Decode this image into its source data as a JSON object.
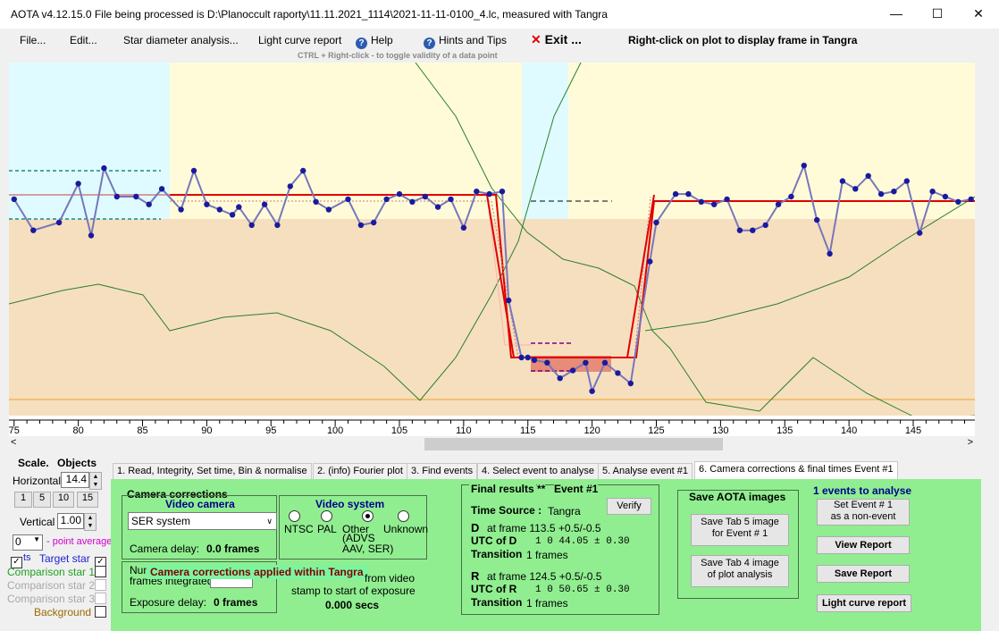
{
  "window": {
    "title": "AOTA v4.12.15.0    File being processed is D:\\Planoccult raporty\\11.11.2021_1114\\2021-11-11-0100_4.lc, measured with Tangra",
    "minimize": "—",
    "maximize": "☐",
    "close": "✕"
  },
  "menu": {
    "file": "File...",
    "edit": "Edit...",
    "star_diameter": "Star diameter analysis...",
    "light_curve_report": "Light curve report",
    "help": "Help",
    "hints": "Hints and Tips",
    "exit": "Exit ...",
    "rightclick_note": "Right-click on plot to display frame in Tangra"
  },
  "hint_line": "CTRL + Right-click  -  to toggle validity of a data point",
  "colors": {
    "cyan_band": "#e0fbff",
    "yellow_band": "#fffbd9",
    "tan_band": "#f6dfbf",
    "series": "#7777bb",
    "points": "#1a1a9e",
    "model": "#e00000",
    "green_curve": "#2a7f2a",
    "panel_green": "#90ee90"
  },
  "chart_data": {
    "type": "line",
    "xlabel": "",
    "ylabel": "",
    "xlim": [
      74.6,
      149.8
    ],
    "ticks": [
      75,
      80,
      85,
      90,
      95,
      100,
      105,
      110,
      115,
      120,
      125,
      130,
      135,
      140,
      145
    ],
    "series": [
      {
        "x": [
          75,
          76.5,
          78.5,
          80,
          81,
          82,
          83,
          84.5,
          85.5,
          86.5,
          88,
          89,
          90,
          91,
          92,
          92.5,
          93.5,
          94.5,
          95.5,
          96.5,
          97.5,
          98.5,
          99.5,
          101,
          102,
          103,
          104,
          105,
          106,
          107,
          108,
          109,
          110,
          111,
          112,
          113,
          113.5,
          114.5,
          115,
          115.5,
          116.5,
          117.5,
          118.5,
          119.5,
          120,
          121,
          122,
          123,
          124.5,
          125,
          126.5,
          127.5,
          128.5,
          129.5,
          130.5,
          131.5,
          132.5,
          133.5,
          134.5,
          135.5,
          136.5,
          137.5,
          138.5,
          139.5,
          140.5,
          141.5,
          142.5,
          143.5,
          144.5,
          145.5,
          146.5,
          147.5,
          148.5,
          149.5
        ],
        "y": [
          0.99,
          0.87,
          0.9,
          1.05,
          0.85,
          1.11,
          1.0,
          1.0,
          0.97,
          1.03,
          0.95,
          1.1,
          0.97,
          0.95,
          0.93,
          0.96,
          0.89,
          0.97,
          0.89,
          1.04,
          1.1,
          0.98,
          0.95,
          0.99,
          0.89,
          0.9,
          0.99,
          1.01,
          0.98,
          1.0,
          0.96,
          0.99,
          0.88,
          1.02,
          1.01,
          1.02,
          0.6,
          0.38,
          0.38,
          0.37,
          0.36,
          0.3,
          0.33,
          0.36,
          0.25,
          0.36,
          0.32,
          0.28,
          0.75,
          0.9,
          1.01,
          1.01,
          0.98,
          0.97,
          0.99,
          0.87,
          0.87,
          0.89,
          0.97,
          1.0,
          1.12,
          0.91,
          0.78,
          1.06,
          1.03,
          1.08,
          1.01,
          1.02,
          1.06,
          0.86,
          1.02,
          1.0,
          0.98,
          0.99
        ]
      }
    ]
  },
  "left_panel": {
    "scale_label": "Scale.",
    "objects_label": "Objects",
    "horizontal_label": "Horizontal",
    "horizontal_value": "14.4",
    "zoom_buttons": [
      "1",
      "5",
      "10",
      "15"
    ],
    "vertical_label": "Vertical",
    "vertical_value": "1.00",
    "point_avg_value": "0",
    "point_avg_label": "- point average",
    "pts_label": "ts",
    "target_star": "Target star",
    "comparison_1": "Comparison star 1",
    "comparison_2": "Comparison star 2",
    "comparison_3": "Comparison star 3",
    "background": "Background",
    "checked_mark": "✓"
  },
  "tabs": [
    "1.  Read, Integrity, Set time, Bin & normalise",
    "2. (info)  Fourier plot",
    "3. Find events",
    "4. Select event to analyse",
    "5. Analyse event #1",
    "6. Camera corrections & final times Event #1"
  ],
  "camera": {
    "group_label": "Camera corrections",
    "video_camera_title": "Video camera",
    "camera_select": "SER system",
    "camera_delay_label": "Camera delay:",
    "camera_delay_value": "0.0 frames",
    "video_system_title": "Video system",
    "ntsc": "NTSC",
    "pal": "PAL",
    "other": "Other",
    "other_note": "(ADVS\nAAV, SER)",
    "unknown": "Unknown",
    "num_frames_label": "Num\nframes integrated",
    "banner": "Camera corrections applied within Tangra",
    "from_video": "from video",
    "stamp_text": "stamp to start of exposure",
    "exposure_secs": "0.000 secs",
    "exposure_delay_label": "Exposure delay:",
    "exposure_delay_value": "0 frames"
  },
  "final": {
    "title": "Final results",
    "stars": "**",
    "event": "Event #1",
    "verify": "Verify",
    "time_source_label": "Time Source :",
    "time_source_value": "Tangra",
    "d_label": "D",
    "d_frame": "at frame 113.5  +0.5/-0.5",
    "utc_d_label": "UTC of D",
    "utc_d_value": "1  0 44.05  ± 0.30",
    "transition_d_label": "Transition",
    "transition_d_value": "1 frames",
    "r_label": "R",
    "r_frame": "at frame 124.5  +0.5/-0.5",
    "utc_r_label": "UTC of R",
    "utc_r_value": "1  0 50.65  ± 0.30",
    "transition_r_label": "Transition",
    "transition_r_value": "1 frames"
  },
  "save_images": {
    "title": "Save AOTA images",
    "tab5": "Save Tab 5 image\nfor Event # 1",
    "tab4": "Save Tab 4 image\nof plot analysis"
  },
  "right_actions": {
    "events_count": "1  events to analyse",
    "set_event": "Set Event # 1\nas a non-event",
    "view_report": "View Report",
    "save_report": "Save Report",
    "light_curve_report": "Light curve report"
  }
}
